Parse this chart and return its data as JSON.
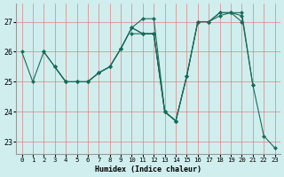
{
  "xlabel": "Humidex (Indice chaleur)",
  "bg_color": "#d0eeee",
  "line_color": "#1a6b5a",
  "grid_color": "#e08080",
  "xlim": [
    -0.5,
    23.5
  ],
  "ylim": [
    22.6,
    27.6
  ],
  "yticks": [
    23,
    24,
    25,
    26,
    27
  ],
  "xticks": [
    0,
    1,
    2,
    3,
    4,
    5,
    6,
    7,
    8,
    9,
    10,
    11,
    12,
    13,
    14,
    15,
    16,
    17,
    18,
    19,
    20,
    21,
    22,
    23
  ],
  "lines": [
    {
      "x": [
        0,
        1,
        2,
        3,
        4,
        5,
        6,
        7,
        8,
        9,
        10,
        11,
        12,
        13,
        14
      ],
      "y": [
        26,
        25,
        26,
        25.5,
        25,
        25,
        25,
        25.3,
        25.5,
        26.1,
        26.8,
        27.1,
        27.1,
        24,
        23.7
      ]
    },
    {
      "x": [
        2,
        3,
        4,
        5,
        6,
        7,
        8,
        9,
        10,
        11,
        12,
        13,
        14,
        15,
        16,
        17,
        18,
        19,
        20
      ],
      "y": [
        26,
        25.5,
        25,
        25,
        25,
        25.3,
        25.5,
        26.1,
        26.8,
        26.6,
        26.6,
        24,
        23.7,
        25.2,
        27,
        27.0,
        27.3,
        27.3,
        27.0
      ]
    },
    {
      "x": [
        3,
        4,
        5,
        6,
        7,
        8,
        9,
        10,
        11,
        12,
        13,
        14,
        15,
        16,
        17,
        18,
        19,
        20,
        21
      ],
      "y": [
        25.5,
        25,
        25,
        25,
        25.3,
        25.5,
        26.1,
        26.8,
        26.6,
        26.6,
        24,
        23.7,
        25.2,
        27,
        27.0,
        27.2,
        27.3,
        27.2,
        24.9
      ]
    },
    {
      "x": [
        10,
        11,
        12,
        13,
        14,
        15,
        16,
        17,
        18,
        19,
        20,
        21,
        22,
        23
      ],
      "y": [
        26.6,
        26.6,
        26.6,
        24,
        23.7,
        25.2,
        27,
        27.0,
        27.3,
        27.3,
        27.3,
        24.9,
        23.2,
        22.8
      ]
    }
  ]
}
